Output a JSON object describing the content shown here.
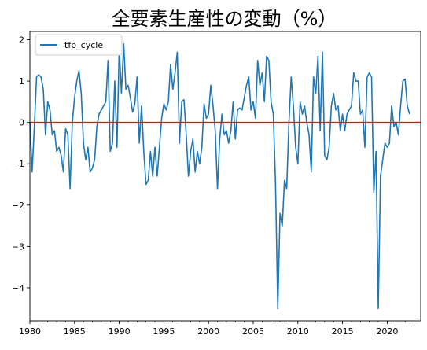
{
  "chart_data": {
    "type": "line",
    "title": "全要素生産性の変動（%）",
    "xlabel": "",
    "ylabel": "",
    "xlim": [
      1980.0,
      2023.75
    ],
    "ylim": [
      -4.8,
      2.2
    ],
    "x_ticks": [
      1980,
      1985,
      1990,
      1995,
      2000,
      2005,
      2010,
      2015,
      2020
    ],
    "x_tick_labels": [
      "1980",
      "1985",
      "1990",
      "1995",
      "2000",
      "2005",
      "2010",
      "2015",
      "2020"
    ],
    "y_ticks": [
      -4,
      -3,
      -2,
      -1,
      0,
      1,
      2
    ],
    "y_tick_labels": [
      "−4",
      "−3",
      "−2",
      "−1",
      "0",
      "1",
      "2"
    ],
    "legend": {
      "position": "upper-left"
    },
    "grid": false,
    "colors": {
      "series": "#1f77b4",
      "zero_line": "#ff0000"
    },
    "reference_lines": [
      {
        "y": 0,
        "color": "#ff0000"
      }
    ],
    "x_start": 1980.0,
    "x_step": 0.25,
    "series": [
      {
        "name": "tfp_cycle",
        "values": [
          0.01,
          -1.2,
          -0.1,
          1.11,
          1.15,
          1.1,
          0.8,
          -0.3,
          0.5,
          0.3,
          -0.3,
          -0.2,
          -0.7,
          -0.6,
          -0.8,
          -1.2,
          -0.15,
          -0.3,
          -1.6,
          0.0,
          0.6,
          1.0,
          1.25,
          0.7,
          -0.5,
          -0.9,
          -0.6,
          -1.2,
          -1.1,
          -0.9,
          -0.1,
          0.2,
          0.3,
          0.4,
          0.5,
          1.5,
          -0.7,
          -0.5,
          1.0,
          -0.6,
          1.8,
          0.7,
          1.9,
          0.8,
          0.9,
          0.6,
          0.25,
          0.45,
          1.1,
          -0.5,
          0.4,
          -0.7,
          -1.5,
          -1.4,
          -0.7,
          -1.3,
          -0.6,
          -1.3,
          -0.6,
          0.1,
          0.45,
          0.3,
          0.5,
          1.4,
          0.8,
          1.2,
          1.7,
          -0.5,
          0.5,
          0.55,
          -0.3,
          -1.3,
          -0.7,
          -0.4,
          -1.2,
          -0.7,
          -1.0,
          -0.6,
          0.45,
          0.1,
          0.2,
          0.9,
          0.4,
          -0.2,
          -1.6,
          -0.4,
          0.2,
          -0.3,
          -0.2,
          -0.5,
          -0.2,
          0.5,
          -0.4,
          0.3,
          0.35,
          0.3,
          0.6,
          0.9,
          1.1,
          0.3,
          0.5,
          0.1,
          1.5,
          0.9,
          1.2,
          0.5,
          1.6,
          1.5,
          0.5,
          0.2,
          -1.5,
          -4.5,
          -2.2,
          -2.5,
          -1.4,
          -1.6,
          0.0,
          1.1,
          0.4,
          -0.6,
          -1.0,
          0.5,
          0.2,
          0.4,
          0.0,
          -0.3,
          -1.2,
          1.1,
          0.7,
          1.6,
          -0.2,
          1.7,
          -0.8,
          -0.9,
          -0.6,
          0.4,
          0.7,
          0.3,
          0.4,
          -0.2,
          0.2,
          -0.2,
          0.2,
          0.3,
          0.4,
          1.2,
          1.0,
          1.0,
          0.2,
          0.3,
          -0.6,
          1.1,
          1.2,
          1.1,
          -1.7,
          -0.7,
          -4.5,
          -1.3,
          -0.9,
          -0.5,
          -0.6,
          -0.5,
          0.4,
          -0.1,
          0.0,
          -0.3,
          0.4,
          1.0,
          1.05,
          0.4,
          0.2
        ]
      }
    ]
  }
}
